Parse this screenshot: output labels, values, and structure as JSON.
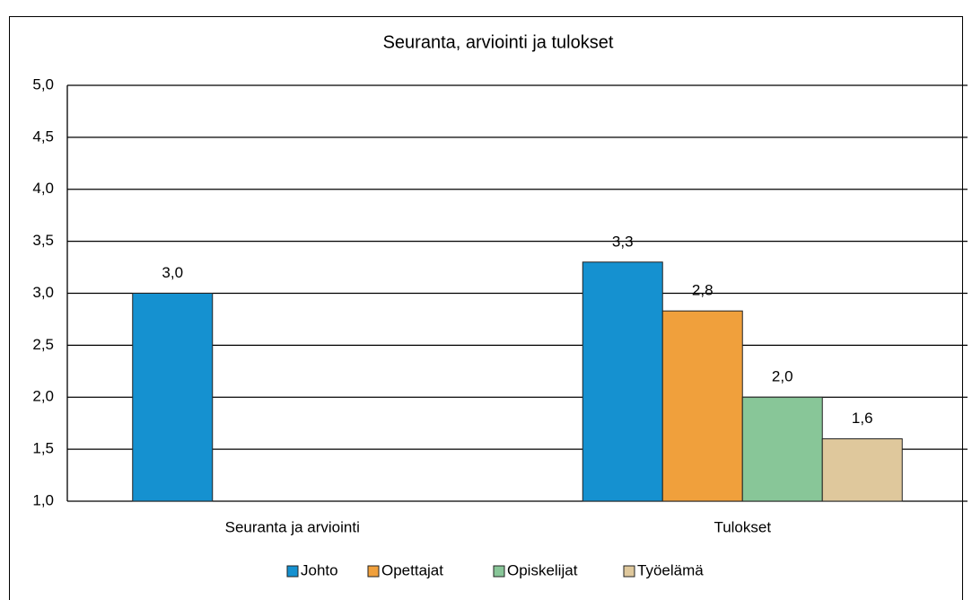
{
  "chart_data": {
    "type": "bar",
    "title": "Seuranta, arviointi ja tulokset",
    "categories": [
      "Seuranta ja arviointi",
      "Tulokset"
    ],
    "series": [
      {
        "name": "Johto",
        "color": "#1591d0",
        "values": [
          3.0,
          3.3
        ],
        "value_labels": [
          "3,0",
          "3,3"
        ]
      },
      {
        "name": "Opettajat",
        "color": "#f0a03c",
        "values": [
          null,
          2.83
        ],
        "value_labels": [
          null,
          "2,8"
        ]
      },
      {
        "name": "Opiskelijat",
        "color": "#88c698",
        "values": [
          null,
          2.0
        ],
        "value_labels": [
          null,
          "2,0"
        ]
      },
      {
        "name": "Työelämä",
        "color": "#dfc89c",
        "values": [
          null,
          1.6
        ],
        "value_labels": [
          null,
          "1,6"
        ]
      }
    ],
    "ylim": [
      1.0,
      5.0
    ],
    "yticks": [
      {
        "value": 1.0,
        "label": "1,0"
      },
      {
        "value": 1.5,
        "label": "1,5"
      },
      {
        "value": 2.0,
        "label": "2,0"
      },
      {
        "value": 2.5,
        "label": "2,5"
      },
      {
        "value": 3.0,
        "label": "3,0"
      },
      {
        "value": 3.5,
        "label": "3,5"
      },
      {
        "value": 4.0,
        "label": "4,0"
      },
      {
        "value": 4.5,
        "label": "4,5"
      },
      {
        "value": 5.0,
        "label": "5,0"
      }
    ],
    "grid": true,
    "legend": "bottom"
  }
}
